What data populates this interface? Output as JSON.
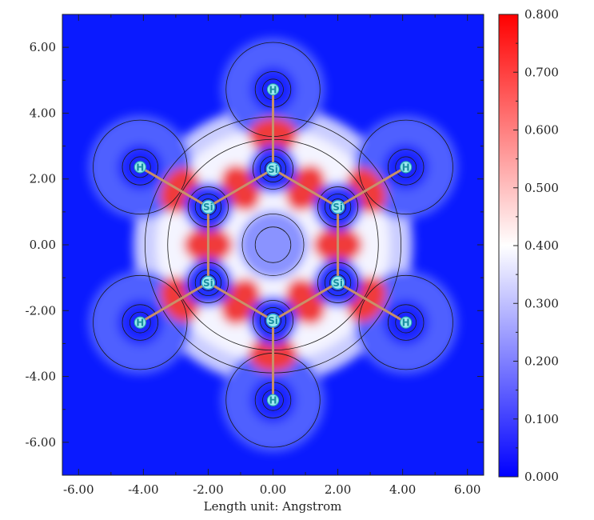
{
  "chart_data": {
    "type": "heatmap",
    "xlabel": "Length unit: Angstrom",
    "ylabel": "",
    "xlim": [
      -6.5,
      6.5
    ],
    "ylim": [
      -7.0,
      7.0
    ],
    "x_ticks": [
      -6,
      -4,
      -2,
      0,
      2,
      4,
      6
    ],
    "x_tick_labels": [
      "-6.00",
      "-4.00",
      "-2.00",
      "0.00",
      "2.00",
      "4.00",
      "6.00"
    ],
    "y_ticks": [
      6,
      4,
      2,
      0,
      -2,
      -4,
      -6
    ],
    "y_tick_labels": [
      "6.00",
      "4.00",
      "2.00",
      "0.00",
      "-2.00",
      "-4.00",
      "-6.00"
    ],
    "colorbar": {
      "min": 0.0,
      "max": 0.8,
      "ticks": [
        0.8,
        0.7,
        0.6,
        0.5,
        0.4,
        0.3,
        0.2,
        0.1,
        0.0
      ],
      "tick_labels": [
        "0.800",
        "0.700",
        "0.600",
        "0.500",
        "0.400",
        "0.300",
        "0.200",
        "0.100",
        "0.000"
      ],
      "colors": {
        "low": "#0000ff",
        "mid": "#ffffff",
        "high": "#ff0000"
      }
    },
    "atoms": [
      {
        "label": "Si",
        "x": 0.0,
        "y": 2.3
      },
      {
        "label": "Si",
        "x": 2.0,
        "y": 1.15
      },
      {
        "label": "Si",
        "x": 2.0,
        "y": -1.15
      },
      {
        "label": "Si",
        "x": 0.0,
        "y": -2.3
      },
      {
        "label": "Si",
        "x": -2.0,
        "y": -1.15
      },
      {
        "label": "Si",
        "x": -2.0,
        "y": 1.15
      },
      {
        "label": "H",
        "x": 0.0,
        "y": 4.72
      },
      {
        "label": "H",
        "x": 4.1,
        "y": 2.36
      },
      {
        "label": "H",
        "x": 4.1,
        "y": -2.36
      },
      {
        "label": "H",
        "x": 0.0,
        "y": -4.72
      },
      {
        "label": "H",
        "x": -4.1,
        "y": -2.36
      },
      {
        "label": "H",
        "x": -4.1,
        "y": 2.36
      }
    ],
    "bonds": [
      [
        0,
        1
      ],
      [
        1,
        2
      ],
      [
        2,
        3
      ],
      [
        3,
        4
      ],
      [
        4,
        5
      ],
      [
        5,
        0
      ],
      [
        0,
        6
      ],
      [
        1,
        7
      ],
      [
        2,
        8
      ],
      [
        3,
        9
      ],
      [
        4,
        10
      ],
      [
        5,
        11
      ]
    ]
  }
}
